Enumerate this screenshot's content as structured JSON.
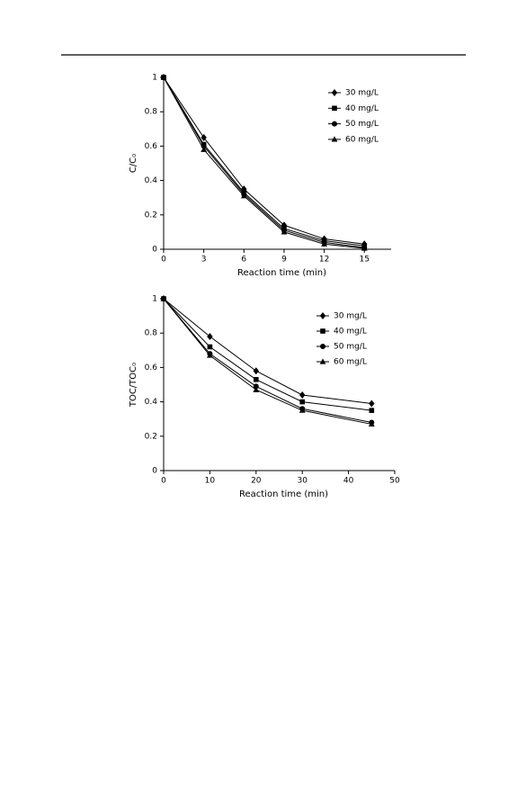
{
  "chart_data": [
    {
      "type": "line",
      "xlabel": "Reaction time (min)",
      "ylabel": "C/C₀",
      "x": [
        0,
        3,
        6,
        9,
        12,
        15
      ],
      "xlim": [
        0,
        17
      ],
      "xticks": [
        0,
        3,
        6,
        9,
        12,
        15
      ],
      "ylim": [
        0,
        1
      ],
      "yticks": [
        0,
        0.2,
        0.4,
        0.6,
        0.8,
        1
      ],
      "legend": "upper right",
      "series": [
        {
          "name": "30 mg/L",
          "color": "#000000",
          "marker": "diamond",
          "values": [
            1,
            0.65,
            0.35,
            0.14,
            0.06,
            0.03
          ]
        },
        {
          "name": "40 mg/L",
          "color": "#000000",
          "marker": "square",
          "values": [
            1,
            0.61,
            0.33,
            0.12,
            0.05,
            0.02
          ]
        },
        {
          "name": "50 mg/L",
          "color": "#000000",
          "marker": "circle",
          "values": [
            1,
            0.6,
            0.32,
            0.11,
            0.04,
            0.01
          ]
        },
        {
          "name": "60 mg/L",
          "color": "#000000",
          "marker": "triangle",
          "values": [
            1,
            0.58,
            0.31,
            0.1,
            0.03,
            0.005
          ]
        }
      ]
    },
    {
      "type": "line",
      "xlabel": "Reaction time (min)",
      "ylabel": "TOC/TOC₀",
      "x": [
        0,
        10,
        20,
        30,
        45
      ],
      "xlim": [
        0,
        50
      ],
      "xticks": [
        0,
        10,
        20,
        30,
        40,
        50
      ],
      "ylim": [
        0,
        1
      ],
      "yticks": [
        0,
        0.2,
        0.4,
        0.6,
        0.8,
        1
      ],
      "legend": "upper right",
      "series": [
        {
          "name": "30 mg/L",
          "color": "#000000",
          "marker": "diamond",
          "values": [
            1,
            0.78,
            0.58,
            0.44,
            0.39
          ]
        },
        {
          "name": "40 mg/L",
          "color": "#000000",
          "marker": "square",
          "values": [
            1,
            0.72,
            0.53,
            0.4,
            0.35
          ]
        },
        {
          "name": "50 mg/L",
          "color": "#000000",
          "marker": "circle",
          "values": [
            1,
            0.68,
            0.49,
            0.36,
            0.28
          ]
        },
        {
          "name": "60 mg/L",
          "color": "#000000",
          "marker": "triangle",
          "values": [
            1,
            0.67,
            0.47,
            0.35,
            0.27
          ]
        }
      ]
    }
  ]
}
